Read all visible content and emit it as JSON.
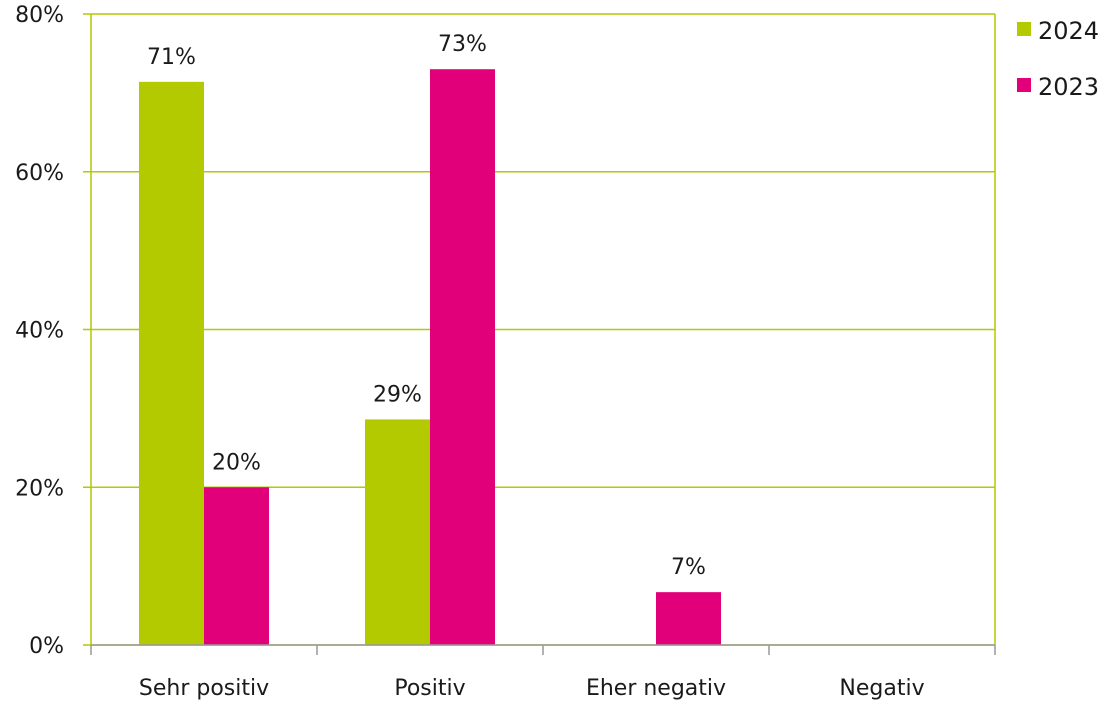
{
  "chart_data": {
    "type": "bar",
    "categories": [
      "Sehr positiv",
      "Positiv",
      "Eher negativ",
      "Negativ"
    ],
    "series": [
      {
        "name": "2024",
        "color": "#b3c900",
        "values": [
          71.4,
          28.6,
          null,
          null
        ],
        "labels": [
          "71%",
          "29%",
          "",
          ""
        ]
      },
      {
        "name": "2023",
        "color": "#e2007a",
        "values": [
          20,
          73,
          6.7,
          null
        ],
        "labels": [
          "20%",
          "73%",
          "7%",
          ""
        ]
      }
    ],
    "ylim": [
      0,
      80
    ],
    "yticks": [
      0,
      20,
      40,
      60,
      80
    ],
    "ytick_labels": [
      "0%",
      "20%",
      "40%",
      "60%",
      "80%"
    ],
    "grid": true,
    "grid_color": "#b3c900",
    "legend_position": "top-right"
  }
}
